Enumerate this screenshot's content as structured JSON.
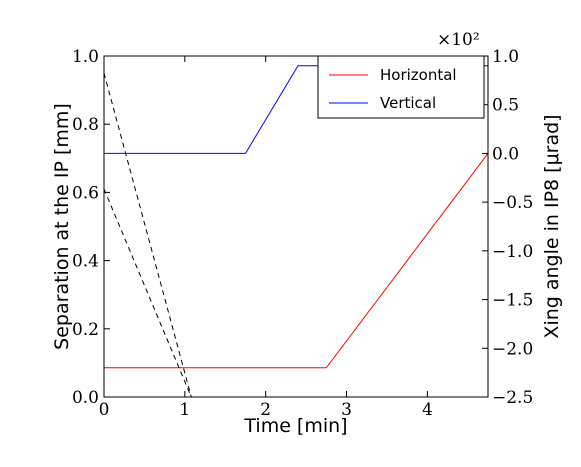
{
  "chart_data": {
    "type": "line",
    "xlabel": "Time [min]",
    "ylabel_left": "Separation at the IP [mm]",
    "ylabel_right": "Xing angle in IP8 [μrad]",
    "right_axis_multiplier": "×10²",
    "xlim": [
      0,
      4.75
    ],
    "ylim_left": [
      0,
      1.0
    ],
    "ylim_right": [
      -2.5,
      1.0
    ],
    "xticks": [
      "0",
      "1",
      "2",
      "3",
      "4"
    ],
    "yticks_left": [
      "0.0",
      "0.2",
      "0.4",
      "0.6",
      "0.8",
      "1.0"
    ],
    "yticks_right": [
      "−2.5",
      "−2.0",
      "−1.5",
      "−1.0",
      "−0.5",
      "0.0",
      "0.5",
      "1.0"
    ],
    "grid": false,
    "legend_position": "top-right",
    "series": [
      {
        "name": "Horizontal",
        "axis": "right",
        "color": "#ff0000",
        "style": "solid",
        "x": [
          0,
          2.75,
          4.75
        ],
        "y": [
          -2.2,
          -2.2,
          0.0
        ]
      },
      {
        "name": "Vertical",
        "axis": "right",
        "color": "#0000ff",
        "style": "solid",
        "x": [
          0,
          1.75,
          2.4,
          4.75
        ],
        "y": [
          0.0,
          0.0,
          0.9,
          0.9
        ]
      },
      {
        "axis": "left",
        "color": "#000000",
        "style": "dashed",
        "x": [
          0,
          1.08
        ],
        "y": [
          0.95,
          0.0
        ]
      },
      {
        "axis": "left",
        "color": "#000000",
        "style": "dashed",
        "x": [
          0,
          1.08
        ],
        "y": [
          0.61,
          0.0
        ]
      }
    ]
  }
}
